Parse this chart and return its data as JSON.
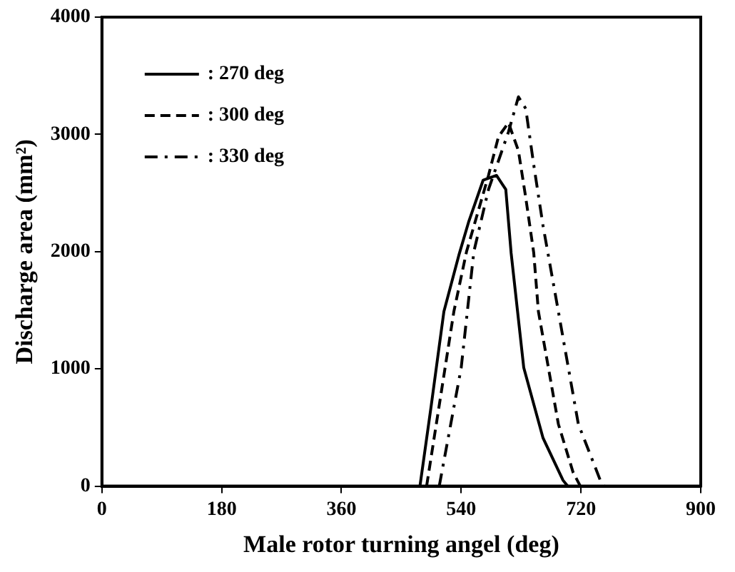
{
  "chart_data": {
    "type": "line",
    "xlabel": "Male rotor turning angel (deg)",
    "ylabel": "Discharge area (mm²)",
    "xlim": [
      0,
      900
    ],
    "xticks": [
      0,
      180,
      360,
      540,
      720,
      900
    ],
    "ylim": [
      0,
      4000
    ],
    "yticks": [
      0,
      1000,
      2000,
      3000,
      4000
    ],
    "grid": false,
    "legend": "top left",
    "marker": "none",
    "series": [
      {
        "name": ": 270 deg",
        "color": "#000000",
        "line_style": "solid",
        "x": [
          478,
          495,
          514,
          537,
          551,
          573,
          593,
          607,
          615,
          634,
          663,
          693,
          700
        ],
        "values": [
          0,
          690,
          1490,
          1980,
          2250,
          2610,
          2650,
          2530,
          1990,
          1010,
          410,
          50,
          0
        ]
      },
      {
        "name": ": 300 deg",
        "color": "#000000",
        "line_style": "dashed",
        "x": [
          488,
          507,
          529,
          548,
          581,
          596,
          611,
          626,
          637,
          649,
          656,
          686,
          708,
          719
        ],
        "values": [
          0,
          690,
          1490,
          2000,
          2650,
          2980,
          3100,
          2860,
          2460,
          1990,
          1490,
          530,
          120,
          0
        ]
      },
      {
        "name": ": 330 deg",
        "color": "#000000",
        "line_style": "dashdot",
        "x": [
          507,
          540,
          559,
          581,
          611,
          626,
          637,
          649,
          663,
          686,
          716,
          749,
          755
        ],
        "values": [
          0,
          1010,
          2000,
          2530,
          3020,
          3320,
          3220,
          2740,
          2220,
          1490,
          530,
          50,
          0
        ]
      }
    ]
  }
}
